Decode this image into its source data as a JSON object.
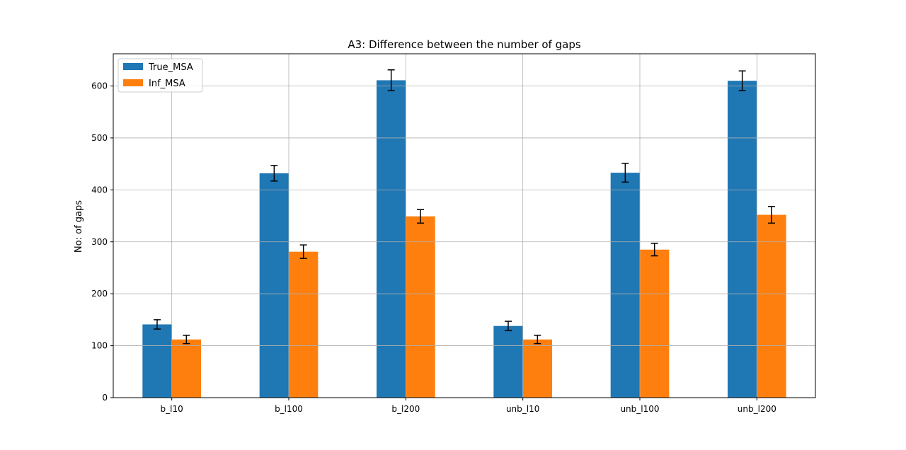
{
  "chart_data": {
    "type": "bar",
    "title": "A3: Difference between the number of gaps",
    "xlabel": "",
    "ylabel": "No: of gaps",
    "categories": [
      "b_l10",
      "b_l100",
      "b_l200",
      "unb_l10",
      "unb_l100",
      "unb_l200"
    ],
    "series": [
      {
        "name": "True_MSA",
        "color": "#1f77b4",
        "values": [
          141,
          432,
          611,
          138,
          433,
          610
        ],
        "errors": [
          9,
          15,
          20,
          9,
          18,
          19
        ]
      },
      {
        "name": "Inf_MSA",
        "color": "#ff7f0e",
        "values": [
          112,
          281,
          349,
          112,
          285,
          352
        ],
        "errors": [
          8,
          13,
          13,
          8,
          12,
          16
        ]
      }
    ],
    "ylim": [
      0,
      662
    ],
    "yticks": [
      0,
      100,
      200,
      300,
      400,
      500,
      600
    ],
    "grid": true,
    "legend_position": "top-left"
  }
}
